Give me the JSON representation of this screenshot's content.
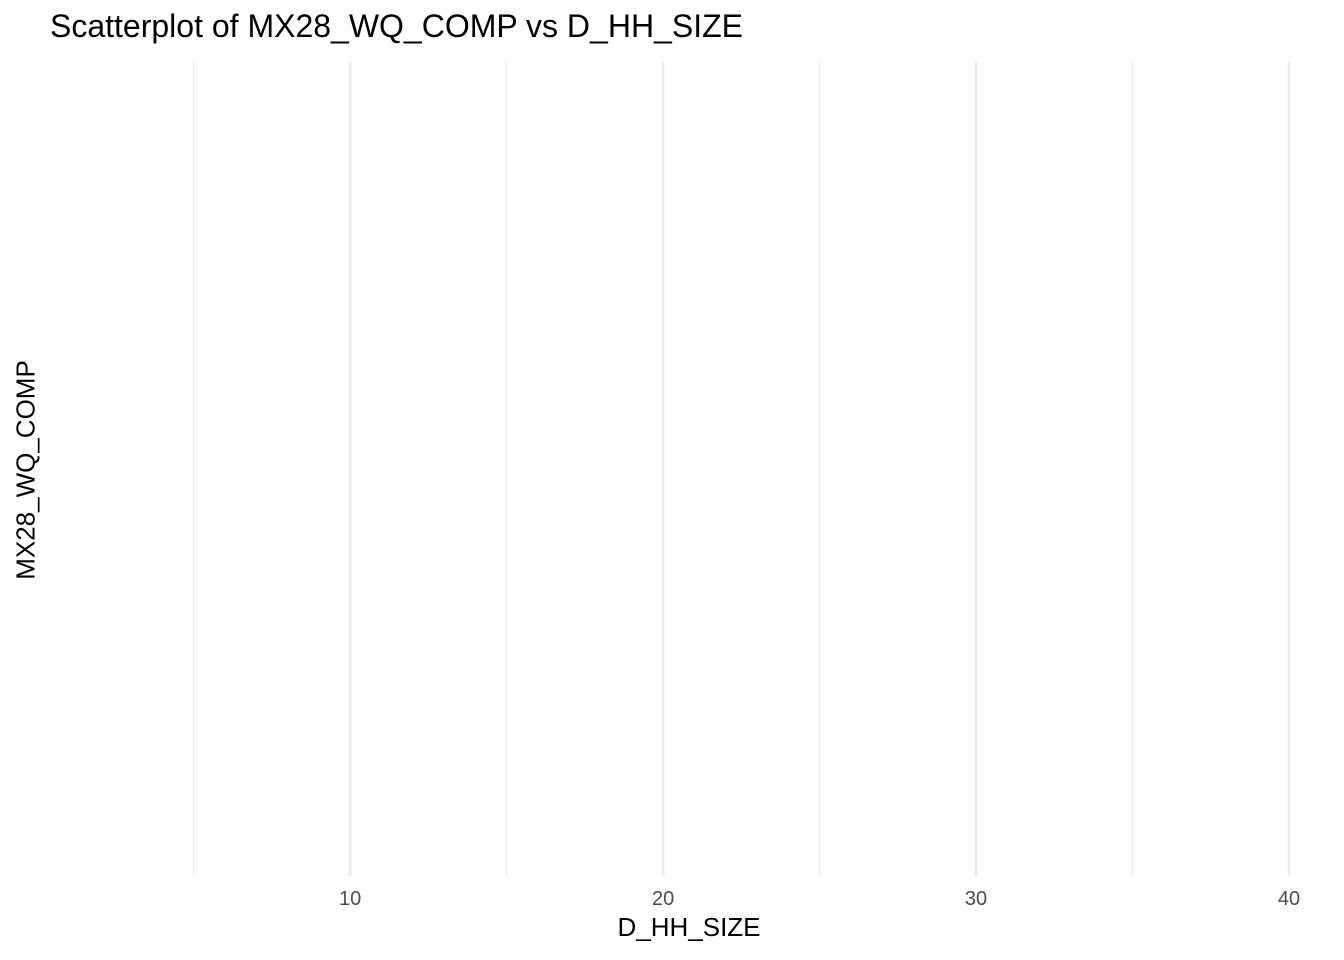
{
  "chart_data": {
    "type": "scatter",
    "title": "Scatterplot of MX28_WQ_COMP vs D_HH_SIZE",
    "xlabel": "D_HH_SIZE",
    "ylabel": "MX28_WQ_COMP",
    "xlim": [
      0.25,
      40.0
    ],
    "x_major_ticks": [
      10,
      20,
      30,
      40
    ],
    "x_minor_ticks": [
      5,
      15,
      25,
      35
    ],
    "x_tick_labels": [
      "10",
      "20",
      "30",
      "40"
    ],
    "y_tick_labels": [],
    "grid": "vertical only",
    "gridline_color": "#ebebeb",
    "background": "#ffffff",
    "series": [
      {
        "x": [],
        "y": []
      }
    ]
  }
}
